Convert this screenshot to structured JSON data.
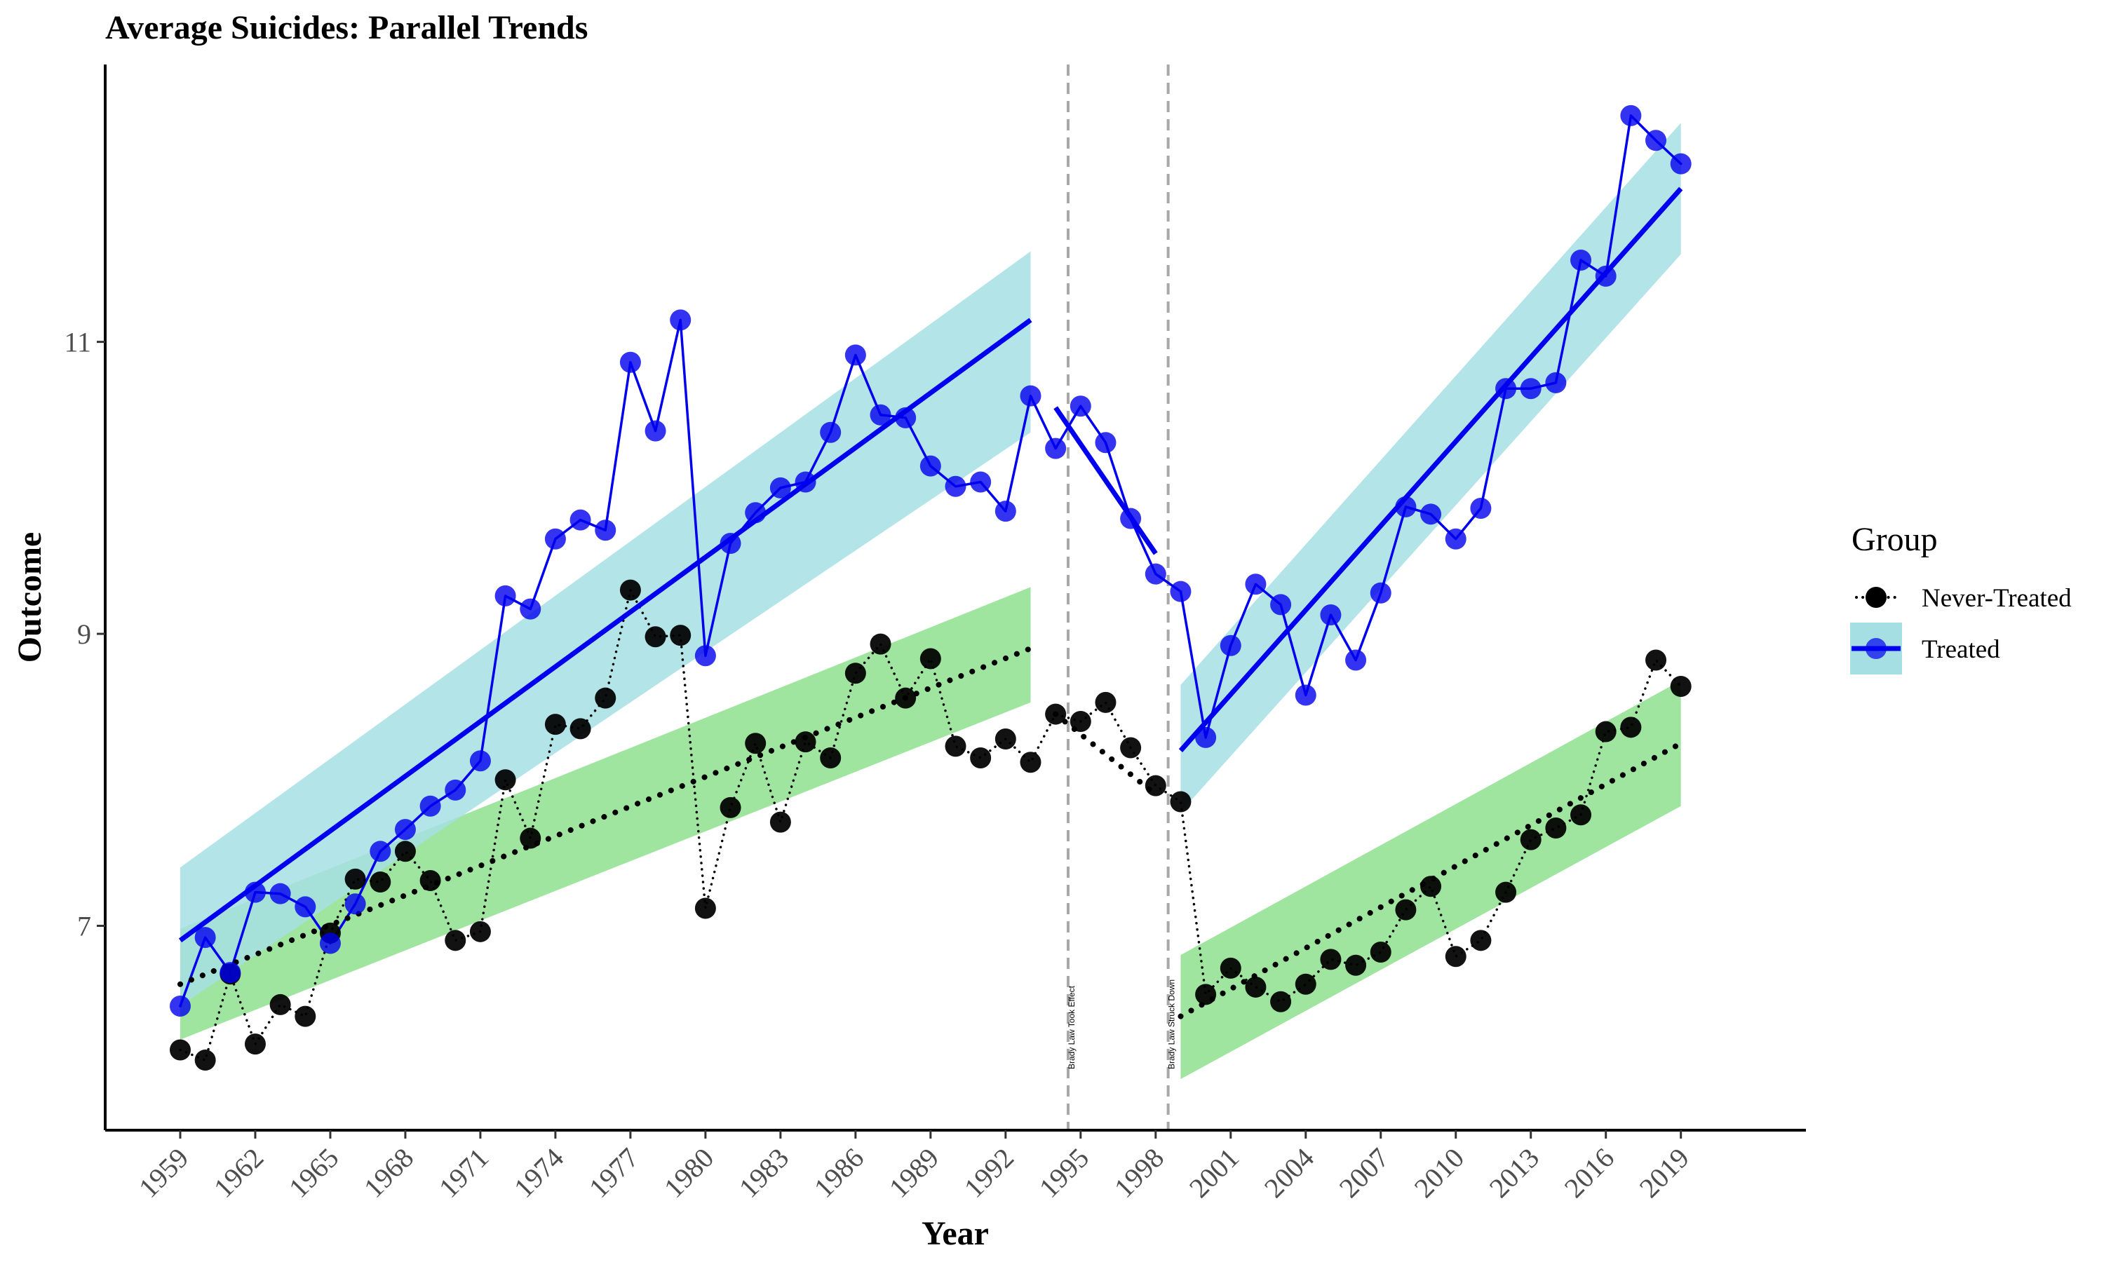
{
  "chart_data": {
    "type": "line",
    "title": "Average Suicides: Parallel Trends",
    "xlabel": "Year",
    "ylabel": "Outcome",
    "xlim": [
      1956,
      2024
    ],
    "ylim": [
      5.6,
      12.9
    ],
    "x_ticks": [
      1959,
      1962,
      1965,
      1968,
      1971,
      1974,
      1977,
      1980,
      1983,
      1986,
      1989,
      1992,
      1995,
      1998,
      2001,
      2004,
      2007,
      2010,
      2013,
      2016,
      2019
    ],
    "y_ticks": [
      7,
      9,
      11
    ],
    "grid": false,
    "legend": {
      "title": "Group",
      "placement": "right",
      "entries": [
        "Never-Treated",
        "Treated"
      ]
    },
    "vlines": [
      {
        "x": 1994.5,
        "label": "Brady Law Took Effect"
      },
      {
        "x": 1998.5,
        "label": "Brady Law Struck Down"
      }
    ],
    "colors": {
      "treated": "#0000EE",
      "treated_band": "#a6dfe3",
      "never_treated": "#000000",
      "never_band": "#8ee08e",
      "vline": "#a8a8a8"
    },
    "series": [
      {
        "name": "Treated",
        "style": "solid",
        "x": [
          1959,
          1960,
          1961,
          1962,
          1963,
          1964,
          1965,
          1966,
          1967,
          1968,
          1969,
          1970,
          1971,
          1972,
          1973,
          1974,
          1975,
          1976,
          1977,
          1978,
          1979,
          1980,
          1981,
          1982,
          1983,
          1984,
          1985,
          1986,
          1987,
          1988,
          1989,
          1990,
          1991,
          1992,
          1993,
          1994,
          1995,
          1996,
          1997,
          1998,
          1999,
          2000,
          2001,
          2002,
          2003,
          2004,
          2005,
          2006,
          2007,
          2008,
          2009,
          2010,
          2011,
          2012,
          2013,
          2014,
          2015,
          2016,
          2017,
          2018,
          2019
        ],
        "y": [
          6.45,
          6.92,
          6.68,
          7.23,
          7.22,
          7.13,
          6.88,
          7.15,
          7.51,
          7.66,
          7.82,
          7.93,
          8.13,
          9.26,
          9.17,
          9.65,
          9.78,
          9.71,
          10.86,
          10.39,
          11.15,
          8.85,
          9.62,
          9.83,
          10.0,
          10.04,
          10.38,
          10.91,
          10.5,
          10.48,
          10.15,
          10.01,
          10.04,
          9.84,
          10.63,
          10.27,
          10.56,
          10.31,
          9.79,
          9.41,
          9.29,
          8.29,
          8.92,
          9.34,
          9.2,
          8.58,
          9.13,
          8.82,
          9.28,
          9.87,
          9.82,
          9.65,
          9.86,
          10.68,
          10.68,
          10.72,
          11.56,
          11.45,
          12.55,
          12.38,
          12.22
        ],
        "fits": [
          {
            "x": [
              1959,
              1993
            ],
            "y": [
              6.9,
              11.15
            ],
            "band": {
              "lo": [
                6.45,
                10.38
              ],
              "hi": [
                7.4,
                11.62
              ]
            }
          },
          {
            "x": [
              1994,
              1998
            ],
            "y": [
              10.55,
              9.55
            ]
          },
          {
            "x": [
              1999,
              2019
            ],
            "y": [
              8.2,
              12.05
            ],
            "band": {
              "lo": [
                7.78,
                11.6
              ],
              "hi": [
                8.65,
                12.5
              ]
            }
          }
        ]
      },
      {
        "name": "Never-Treated",
        "style": "dotted",
        "x": [
          1959,
          1960,
          1961,
          1962,
          1963,
          1964,
          1965,
          1966,
          1967,
          1968,
          1969,
          1970,
          1971,
          1972,
          1973,
          1974,
          1975,
          1976,
          1977,
          1978,
          1979,
          1980,
          1981,
          1982,
          1983,
          1984,
          1985,
          1986,
          1987,
          1988,
          1989,
          1990,
          1991,
          1992,
          1993,
          1994,
          1995,
          1996,
          1997,
          1998,
          1999,
          2000,
          2001,
          2002,
          2003,
          2004,
          2005,
          2006,
          2007,
          2008,
          2009,
          2010,
          2011,
          2012,
          2013,
          2014,
          2015,
          2016,
          2017,
          2018,
          2019
        ],
        "y": [
          6.15,
          6.08,
          6.67,
          6.19,
          6.46,
          6.38,
          6.95,
          7.32,
          7.3,
          7.51,
          7.31,
          6.9,
          6.96,
          8.0,
          7.6,
          8.38,
          8.35,
          8.56,
          9.3,
          8.98,
          8.99,
          7.12,
          7.81,
          8.25,
          7.71,
          8.26,
          8.15,
          8.73,
          8.93,
          8.56,
          8.83,
          8.23,
          8.15,
          8.28,
          8.12,
          8.45,
          8.4,
          8.53,
          8.22,
          7.96,
          7.85,
          6.53,
          6.71,
          6.58,
          6.48,
          6.6,
          6.77,
          6.73,
          6.82,
          7.11,
          7.27,
          6.79,
          6.9,
          7.23,
          7.59,
          7.67,
          7.76,
          8.33,
          8.36,
          8.82,
          8.64
        ],
        "fits": [
          {
            "x": [
              1959,
              1993
            ],
            "y": [
              6.6,
              8.9
            ],
            "band": {
              "lo": [
                6.22,
                8.53
              ],
              "hi": [
                6.98,
                9.32
              ]
            }
          },
          {
            "x": [
              1994,
              1998
            ],
            "y": [
              8.45,
              7.9
            ]
          },
          {
            "x": [
              1999,
              2019
            ],
            "y": [
              6.38,
              8.25
            ],
            "band": {
              "lo": [
                5.95,
                7.82
              ],
              "hi": [
                6.8,
                8.68
              ]
            }
          }
        ]
      }
    ]
  }
}
